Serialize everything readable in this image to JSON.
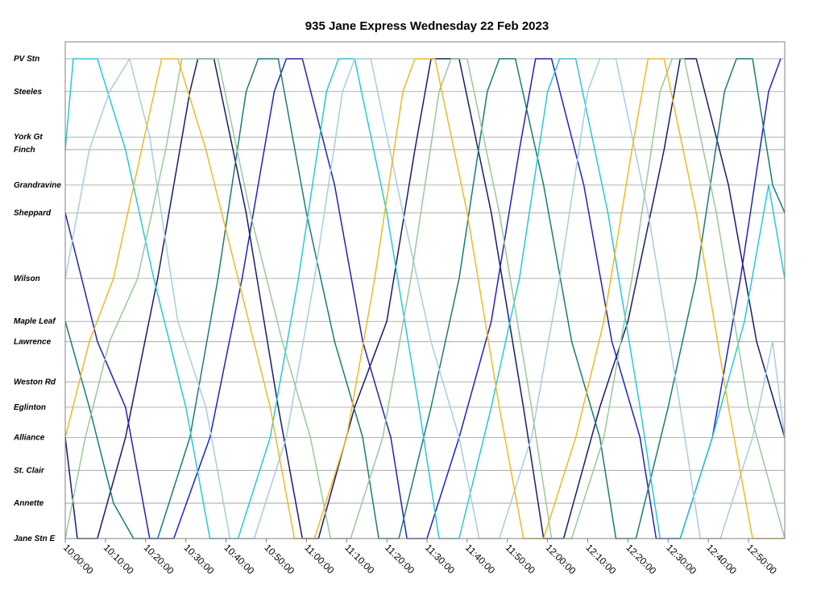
{
  "chart_data": {
    "type": "line",
    "title": "935 Jane Express Wednesday 22 Feb 2023",
    "xlabel": "",
    "ylabel": "",
    "x_axis": {
      "kind": "time",
      "range": [
        "10:00:00",
        "12:59:00"
      ],
      "tick_labels": [
        "10:00:00",
        "10:10:00",
        "10:20:00",
        "10:30:00",
        "10:40:00",
        "10:50:00",
        "11:00:00",
        "11:10:00",
        "11:20:00",
        "11:30:00",
        "11:40:00",
        "11:50:00",
        "12:00:00",
        "12:10:00",
        "12:20:00",
        "12:30:00",
        "12:40:00",
        "12:50:00"
      ]
    },
    "y_axis": {
      "kind": "stops",
      "note": "distance along route, PV Stn at top, Jane Stn E at bottom",
      "stops": [
        {
          "name": "PV Stn",
          "km": 0.0
        },
        {
          "name": "Steeles",
          "km": 1.3
        },
        {
          "name": "York Gt",
          "km": 3.1
        },
        {
          "name": "Finch",
          "km": 3.6
        },
        {
          "name": "Grandravine",
          "km": 5.0
        },
        {
          "name": "Sheppard",
          "km": 6.1
        },
        {
          "name": "Wilson",
          "km": 8.7
        },
        {
          "name": "Maple Leaf",
          "km": 10.4
        },
        {
          "name": "Lawrence",
          "km": 11.2
        },
        {
          "name": "Weston Rd",
          "km": 12.8
        },
        {
          "name": "Eglinton",
          "km": 13.8
        },
        {
          "name": "Alliance",
          "km": 15.0
        },
        {
          "name": "St. Clair",
          "km": 16.3
        },
        {
          "name": "Annette",
          "km": 17.6
        },
        {
          "name": "Jane Stn E",
          "km": 19.0
        }
      ]
    },
    "grid": true,
    "legend": "none",
    "series": [
      {
        "color": "#1a1a6e",
        "values": [
          [
            "10:00",
            "Alliance"
          ],
          [
            "10:03",
            "Jane Stn E"
          ],
          [
            "10:08",
            "Jane Stn E"
          ],
          [
            "10:15",
            "Alliance"
          ],
          [
            "10:23",
            "Wilson"
          ],
          [
            "10:31",
            "Steeles"
          ],
          [
            "10:33",
            "PV Stn"
          ],
          [
            "10:37",
            "PV Stn"
          ],
          [
            "10:45",
            "Sheppard"
          ],
          [
            "10:53",
            "Eglinton"
          ],
          [
            "10:59",
            "Jane Stn E"
          ],
          [
            "11:03",
            "Jane Stn E"
          ],
          [
            "11:12",
            "Eglinton"
          ],
          [
            "11:20",
            "Maple Leaf"
          ],
          [
            "11:27",
            "Finch"
          ],
          [
            "11:31",
            "PV Stn"
          ],
          [
            "11:38",
            "PV Stn"
          ],
          [
            "11:46",
            "Sheppard"
          ],
          [
            "11:54",
            "Eglinton"
          ],
          [
            "11:59",
            "Jane Stn E"
          ],
          [
            "12:04",
            "Jane Stn E"
          ],
          [
            "12:13",
            "Eglinton"
          ],
          [
            "12:20",
            "Maple Leaf"
          ],
          [
            "12:29",
            "Finch"
          ],
          [
            "12:33",
            "PV Stn"
          ],
          [
            "12:37",
            "PV Stn"
          ],
          [
            "12:45",
            "Grandravine"
          ],
          [
            "12:52",
            "Lawrence"
          ],
          [
            "12:59",
            "Alliance"
          ]
        ]
      },
      {
        "color": "#2222bb",
        "values": [
          [
            "10:00",
            "Sheppard"
          ],
          [
            "10:08",
            "Lawrence"
          ],
          [
            "10:15",
            "Eglinton"
          ],
          [
            "10:21",
            "Jane Stn E"
          ],
          [
            "10:27",
            "Jane Stn E"
          ],
          [
            "10:36",
            "Alliance"
          ],
          [
            "10:44",
            "Wilson"
          ],
          [
            "10:52",
            "Steeles"
          ],
          [
            "10:55",
            "PV Stn"
          ],
          [
            "10:59",
            "PV Stn"
          ],
          [
            "11:07",
            "Grandravine"
          ],
          [
            "11:14",
            "Lawrence"
          ],
          [
            "11:21",
            "Alliance"
          ],
          [
            "11:25",
            "Jane Stn E"
          ],
          [
            "11:30",
            "Jane Stn E"
          ],
          [
            "11:38",
            "Alliance"
          ],
          [
            "11:46",
            "Maple Leaf"
          ],
          [
            "11:53",
            "Finch"
          ],
          [
            "11:57",
            "PV Stn"
          ],
          [
            "12:01",
            "PV Stn"
          ],
          [
            "12:09",
            "Grandravine"
          ],
          [
            "12:16",
            "Lawrence"
          ],
          [
            "12:23",
            "Alliance"
          ],
          [
            "12:27",
            "Jane Stn E"
          ],
          [
            "12:33",
            "Jane Stn E"
          ],
          [
            "12:41",
            "Alliance"
          ],
          [
            "12:48",
            "Wilson"
          ],
          [
            "12:55",
            "Steeles"
          ],
          [
            "12:58",
            "PV Stn"
          ]
        ]
      },
      {
        "color": "#1a7a7a",
        "values": [
          [
            "10:00",
            "Maple Leaf"
          ],
          [
            "10:06",
            "Eglinton"
          ],
          [
            "10:12",
            "Annette"
          ],
          [
            "10:17",
            "Jane Stn E"
          ],
          [
            "10:23",
            "Jane Stn E"
          ],
          [
            "10:31",
            "Alliance"
          ],
          [
            "10:38",
            "Wilson"
          ],
          [
            "10:45",
            "Steeles"
          ],
          [
            "10:48",
            "PV Stn"
          ],
          [
            "10:53",
            "PV Stn"
          ],
          [
            "11:00",
            "Sheppard"
          ],
          [
            "11:07",
            "Lawrence"
          ],
          [
            "11:14",
            "Alliance"
          ],
          [
            "11:18",
            "Jane Stn E"
          ],
          [
            "11:23",
            "Jane Stn E"
          ],
          [
            "11:31",
            "Eglinton"
          ],
          [
            "11:38",
            "Wilson"
          ],
          [
            "11:45",
            "Steeles"
          ],
          [
            "11:48",
            "PV Stn"
          ],
          [
            "11:52",
            "PV Stn"
          ],
          [
            "11:59",
            "Grandravine"
          ],
          [
            "12:06",
            "Lawrence"
          ],
          [
            "12:13",
            "Alliance"
          ],
          [
            "12:17",
            "Jane Stn E"
          ],
          [
            "12:22",
            "Jane Stn E"
          ],
          [
            "12:30",
            "Eglinton"
          ],
          [
            "12:37",
            "Wilson"
          ],
          [
            "12:44",
            "Steeles"
          ],
          [
            "12:47",
            "PV Stn"
          ],
          [
            "12:51",
            "PV Stn"
          ],
          [
            "12:56",
            "Grandravine"
          ],
          [
            "12:59",
            "Sheppard"
          ]
        ]
      },
      {
        "color": "#27c8d8",
        "values": [
          [
            "10:00",
            "Finch"
          ],
          [
            "10:02",
            "PV Stn"
          ],
          [
            "10:08",
            "PV Stn"
          ],
          [
            "10:15",
            "Finch"
          ],
          [
            "10:22",
            "Wilson"
          ],
          [
            "10:30",
            "Eglinton"
          ],
          [
            "10:36",
            "Jane Stn E"
          ],
          [
            "10:43",
            "Jane Stn E"
          ],
          [
            "10:51",
            "Alliance"
          ],
          [
            "10:58",
            "Wilson"
          ],
          [
            "11:05",
            "Steeles"
          ],
          [
            "11:08",
            "PV Stn"
          ],
          [
            "11:12",
            "PV Stn"
          ],
          [
            "11:20",
            "Sheppard"
          ],
          [
            "11:28",
            "Eglinton"
          ],
          [
            "11:33",
            "Jane Stn E"
          ],
          [
            "11:38",
            "Jane Stn E"
          ],
          [
            "11:46",
            "Eglinton"
          ],
          [
            "11:53",
            "Wilson"
          ],
          [
            "12:00",
            "Steeles"
          ],
          [
            "12:03",
            "PV Stn"
          ],
          [
            "12:07",
            "PV Stn"
          ],
          [
            "12:15",
            "Sheppard"
          ],
          [
            "12:23",
            "Eglinton"
          ],
          [
            "12:28",
            "Jane Stn E"
          ],
          [
            "12:33",
            "Jane Stn E"
          ],
          [
            "12:41",
            "Alliance"
          ],
          [
            "12:49",
            "Maple Leaf"
          ],
          [
            "12:55",
            "Grandravine"
          ],
          [
            "12:59",
            "Wilson"
          ]
        ]
      },
      {
        "color": "#a8cce4",
        "values": [
          [
            "10:00",
            "Wilson"
          ],
          [
            "10:06",
            "Finch"
          ],
          [
            "10:11",
            "Steeles"
          ],
          [
            "10:16",
            "PV Stn"
          ],
          [
            "10:21",
            "York Gt"
          ],
          [
            "10:28",
            "Maple Leaf"
          ],
          [
            "10:35",
            "Eglinton"
          ],
          [
            "10:41",
            "Jane Stn E"
          ],
          [
            "10:47",
            "Jane Stn E"
          ],
          [
            "10:55",
            "Alliance"
          ],
          [
            "11:02",
            "Wilson"
          ],
          [
            "11:09",
            "Steeles"
          ],
          [
            "11:12",
            "PV Stn"
          ],
          [
            "11:16",
            "PV Stn"
          ],
          [
            "11:24",
            "Sheppard"
          ],
          [
            "11:31",
            "Lawrence"
          ],
          [
            "11:38",
            "Alliance"
          ],
          [
            "11:43",
            "Jane Stn E"
          ],
          [
            "11:48",
            "Jane Stn E"
          ],
          [
            "11:56",
            "Alliance"
          ],
          [
            "12:03",
            "Wilson"
          ],
          [
            "12:10",
            "Steeles"
          ],
          [
            "12:13",
            "PV Stn"
          ],
          [
            "12:17",
            "PV Stn"
          ],
          [
            "12:25",
            "Sheppard"
          ],
          [
            "12:33",
            "Eglinton"
          ],
          [
            "12:38",
            "Jane Stn E"
          ],
          [
            "12:43",
            "Jane Stn E"
          ],
          [
            "12:51",
            "Alliance"
          ],
          [
            "12:56",
            "Lawrence"
          ],
          [
            "12:59",
            "Alliance"
          ]
        ]
      },
      {
        "color": "#9ac898",
        "values": [
          [
            "10:00",
            "Jane Stn E"
          ],
          [
            "10:05",
            "Alliance"
          ],
          [
            "10:11",
            "Lawrence"
          ],
          [
            "10:18",
            "Wilson"
          ],
          [
            "10:25",
            "Finch"
          ],
          [
            "10:29",
            "PV Stn"
          ],
          [
            "10:38",
            "PV Stn"
          ],
          [
            "10:46",
            "Sheppard"
          ],
          [
            "10:54",
            "Lawrence"
          ],
          [
            "11:01",
            "Alliance"
          ],
          [
            "11:06",
            "Jane Stn E"
          ],
          [
            "11:11",
            "Jane Stn E"
          ],
          [
            "11:19",
            "Alliance"
          ],
          [
            "11:26",
            "Wilson"
          ],
          [
            "11:33",
            "Steeles"
          ],
          [
            "11:36",
            "PV Stn"
          ],
          [
            "11:40",
            "PV Stn"
          ],
          [
            "11:48",
            "Sheppard"
          ],
          [
            "11:56",
            "Eglinton"
          ],
          [
            "12:01",
            "Jane Stn E"
          ],
          [
            "12:06",
            "Jane Stn E"
          ],
          [
            "12:14",
            "Alliance"
          ],
          [
            "12:21",
            "Wilson"
          ],
          [
            "12:28",
            "Steeles"
          ],
          [
            "12:31",
            "PV Stn"
          ],
          [
            "12:34",
            "PV Stn"
          ],
          [
            "12:42",
            "Sheppard"
          ],
          [
            "12:50",
            "Eglinton"
          ],
          [
            "12:59",
            "Jane Stn E"
          ]
        ]
      },
      {
        "color": "#f2b824",
        "values": [
          [
            "10:00",
            "Alliance"
          ],
          [
            "10:06",
            "Lawrence"
          ],
          [
            "10:12",
            "Wilson"
          ],
          [
            "10:19",
            "Finch"
          ],
          [
            "10:24",
            "PV Stn"
          ],
          [
            "10:28",
            "PV Stn"
          ],
          [
            "10:35",
            "Finch"
          ],
          [
            "10:43",
            "Wilson"
          ],
          [
            "10:51",
            "Eglinton"
          ],
          [
            "10:57",
            "Jane Stn E"
          ],
          [
            "11:02",
            "Jane Stn E"
          ],
          [
            "11:10",
            "Alliance"
          ],
          [
            "11:17",
            "Wilson"
          ],
          [
            "11:24",
            "Steeles"
          ],
          [
            "11:27",
            "PV Stn"
          ],
          [
            "11:32",
            "PV Stn"
          ],
          [
            "11:40",
            "Sheppard"
          ],
          [
            "11:48",
            "Eglinton"
          ],
          [
            "11:54",
            "Jane Stn E"
          ],
          [
            "11:59",
            "Jane Stn E"
          ],
          [
            "12:07",
            "Alliance"
          ],
          [
            "12:14",
            "Maple Leaf"
          ],
          [
            "12:21",
            "Finch"
          ],
          [
            "12:25",
            "PV Stn"
          ],
          [
            "12:29",
            "PV Stn"
          ],
          [
            "12:37",
            "Sheppard"
          ],
          [
            "12:45",
            "Eglinton"
          ],
          [
            "12:51",
            "Jane Stn E"
          ],
          [
            "12:59",
            "Jane Stn E"
          ]
        ]
      }
    ]
  }
}
